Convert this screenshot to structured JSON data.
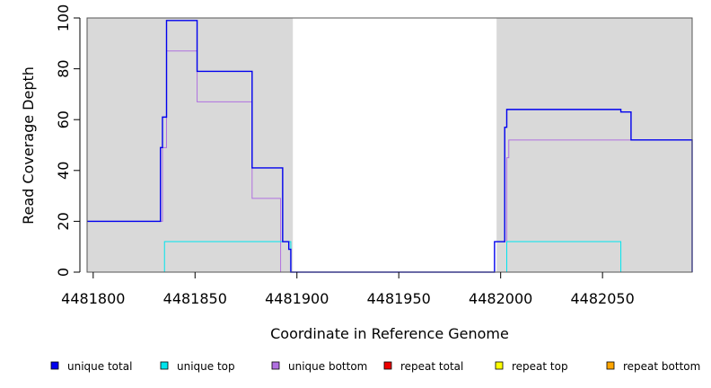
{
  "chart_data": {
    "type": "line",
    "xlabel": "Coordinate in Reference Genome",
    "ylabel": "Read Coverage Depth",
    "xlim": [
      4481797,
      4482094
    ],
    "ylim": [
      0,
      100
    ],
    "x_ticks": [
      4481800,
      4481850,
      4481900,
      4481950,
      4482000,
      4482050
    ],
    "x_tick_labels": [
      "4481800",
      "4481850",
      "4481900",
      "4481950",
      "4482000",
      "4482050"
    ],
    "y_ticks": [
      0,
      20,
      40,
      60,
      80,
      100
    ],
    "y_tick_labels": [
      "0",
      "20",
      "40",
      "60",
      "80",
      "100"
    ],
    "shaded_regions": [
      {
        "x_start": 4481797,
        "x_end": 4481898,
        "color": "#d9d9d9"
      },
      {
        "x_start": 4481998,
        "x_end": 4482094,
        "color": "#d9d9d9"
      }
    ],
    "legend_position": "bottom",
    "series": [
      {
        "name": "unique total",
        "color": "#0000ee",
        "step_x": [
          4481797,
          4481833,
          4481833,
          4481834,
          4481836,
          4481836,
          4481837,
          4481851,
          4481878,
          4481893,
          4481896,
          4481897,
          4481997,
          4482002,
          4482003,
          4482003,
          4482058,
          4482059,
          4482064,
          4482094
        ],
        "step_y": [
          20,
          45,
          49,
          61,
          99,
          99,
          99,
          79,
          41,
          12,
          9,
          0,
          12,
          57,
          64,
          64,
          64,
          63,
          52,
          0
        ]
      },
      {
        "name": "unique top",
        "color": "#00e5ee",
        "step_x": [
          4481797,
          4481835,
          4481897,
          4482003,
          4482059,
          4482094
        ],
        "step_y": [
          0,
          12,
          0,
          12,
          0,
          0
        ]
      },
      {
        "name": "unique bottom",
        "color": "#b070e0",
        "step_x": [
          4481797,
          4481834,
          4481836,
          4481851,
          4481878,
          4481892,
          4482003,
          4482004,
          4482094
        ],
        "step_y": [
          20,
          49,
          87,
          67,
          29,
          0,
          45,
          52,
          52
        ]
      },
      {
        "name": "repeat total",
        "color": "#ee0000",
        "step_x": [
          4481797,
          4482094
        ],
        "step_y": [
          0,
          0
        ]
      },
      {
        "name": "repeat top",
        "color": "#ffff00",
        "step_x": [
          4481797,
          4482094
        ],
        "step_y": [
          0,
          0
        ]
      },
      {
        "name": "repeat bottom",
        "color": "#ffa500",
        "step_x": [
          4481797,
          4482094
        ],
        "step_y": [
          0,
          0
        ]
      }
    ]
  }
}
